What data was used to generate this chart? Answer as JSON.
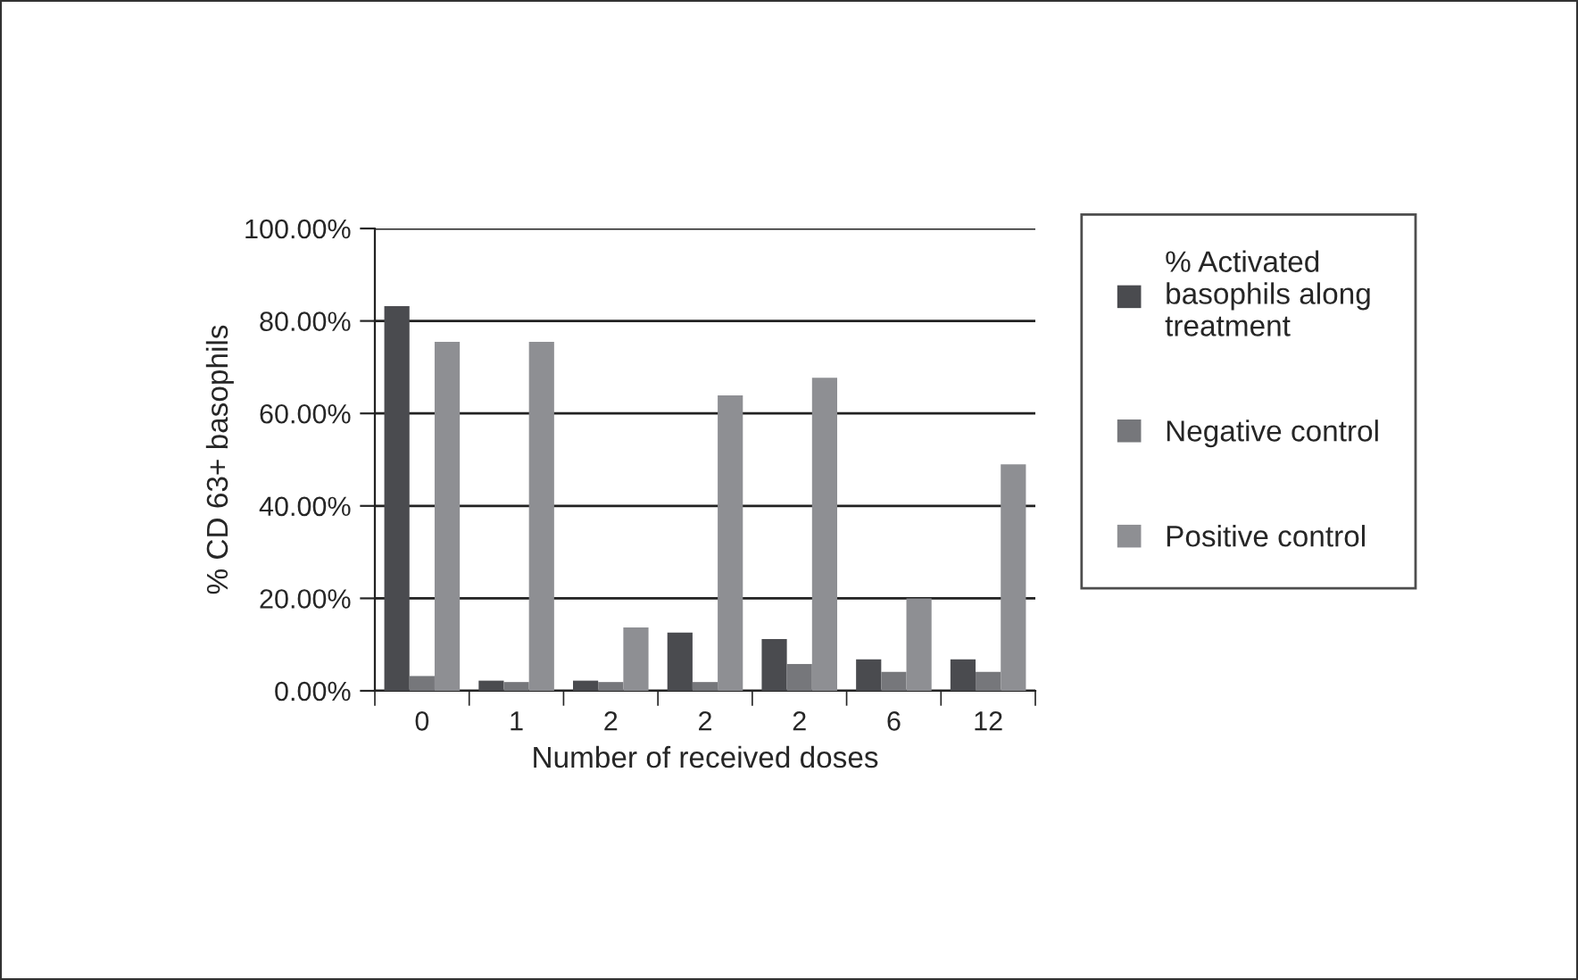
{
  "chart_data": {
    "type": "bar",
    "xlabel": "Number of received doses",
    "ylabel": "% CD 63+ basophils",
    "categories": [
      "0",
      "1",
      "2",
      "2",
      "2",
      "6",
      "12"
    ],
    "series": [
      {
        "name": "% Activated\nbasophils along\ntreatment",
        "color": "#4a4b4f",
        "values": [
          83.2,
          2.2,
          2.2,
          12.6,
          11.2,
          6.8,
          6.8
        ]
      },
      {
        "name": "Negative control",
        "color": "#76777b",
        "values": [
          3.2,
          1.9,
          1.9,
          1.9,
          5.8,
          4.1,
          4.1
        ]
      },
      {
        "name": "Positive control",
        "color": "#8e8f93",
        "values": [
          75.5,
          75.5,
          13.7,
          63.9,
          67.7,
          20.0,
          49.0
        ]
      }
    ],
    "ylim": [
      0,
      100
    ],
    "yticks": [
      {
        "value": 0,
        "label": "0.00%"
      },
      {
        "value": 20,
        "label": "20.00%"
      },
      {
        "value": 40,
        "label": "40.00%"
      },
      {
        "value": 60,
        "label": "60.00%"
      },
      {
        "value": 80,
        "label": "80.00%"
      },
      {
        "value": 100,
        "label": "100.00%"
      }
    ],
    "grid": "y",
    "legend": "right"
  }
}
